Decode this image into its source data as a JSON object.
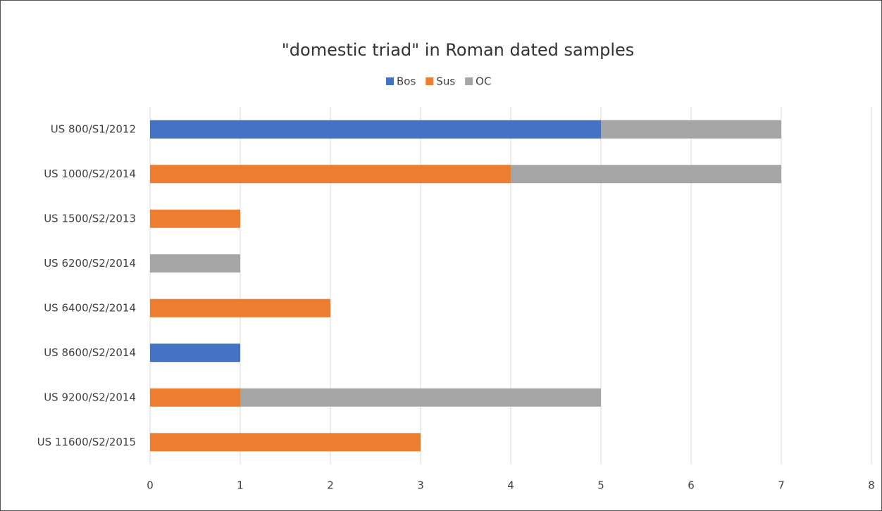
{
  "chart_data": {
    "type": "stacked-barh",
    "title": "\"domestic triad\" in Roman dated samples",
    "categories": [
      "US 800/S1/2012",
      "US 1000/S2/2014",
      "US 1500/S2/2013",
      "US 6200/S2/2014",
      "US 6400/S2/2014",
      "US 8600/S2/2014",
      "US 9200/S2/2014",
      "US 11600/S2/2015"
    ],
    "series": [
      {
        "name": "Bos",
        "color": "#4472c4",
        "values": [
          5,
          0,
          0,
          0,
          0,
          1,
          0,
          0
        ]
      },
      {
        "name": "Sus",
        "color": "#ed7d31",
        "values": [
          0,
          4,
          1,
          0,
          2,
          0,
          1,
          3
        ]
      },
      {
        "name": "OC",
        "color": "#a5a5a5",
        "values": [
          2,
          3,
          0,
          1,
          0,
          0,
          4,
          0
        ]
      }
    ],
    "xlim": [
      0,
      8
    ],
    "xticks": [
      0,
      1,
      2,
      3,
      4,
      5,
      6,
      7,
      8
    ],
    "grid": true,
    "legend": "top"
  }
}
